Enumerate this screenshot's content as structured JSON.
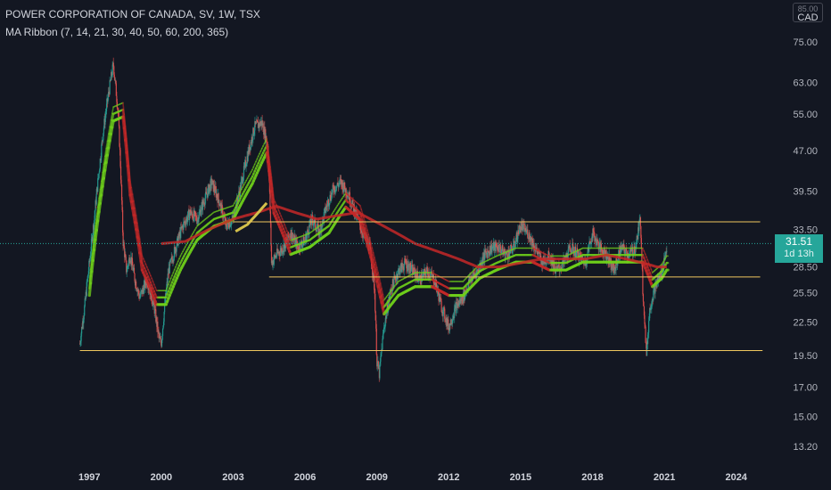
{
  "legend": {
    "symbol_line": "POWER CORPORATION OF CANADA, SV, 1W, TSX",
    "indicator_line": "MA Ribbon (7, 14, 21, 30, 40, 50, 60, 200, 365)"
  },
  "currency_badge": {
    "top": "85.00",
    "bottom": "CAD"
  },
  "last_price": {
    "value": "31.51",
    "countdown": "1d 13h"
  },
  "colors": {
    "background": "#131722",
    "candle_up": "#26a69a",
    "candle_down": "#ef5350",
    "ma_green": "#6fd11a",
    "ma_red": "#c62828",
    "ma_yellow": "#d4c04a",
    "level_line": "#f0c75e",
    "price_line": "#26a69a"
  },
  "chart_data": {
    "type": "line",
    "title": "POWER CORPORATION OF CANADA, SV, 1W, TSX",
    "xlabel": "",
    "ylabel": "",
    "y_scale": "log",
    "ylim": [
      12.5,
      87
    ],
    "xlim": [
      1995.5,
      2025.5
    ],
    "x_ticks": [
      "1997",
      "2000",
      "2003",
      "2006",
      "2009",
      "2012",
      "2015",
      "2018",
      "2021",
      "2024"
    ],
    "y_ticks": [
      "75.00",
      "63.00",
      "55.00",
      "47.00",
      "39.50",
      "33.50",
      "28.50",
      "25.50",
      "22.50",
      "19.50",
      "17.00",
      "15.00",
      "13.20"
    ],
    "last_price": 31.51,
    "series": [
      {
        "type": "price",
        "x": [
          1996.6,
          1996.8,
          1997.0,
          1997.2,
          1997.4,
          1997.6,
          1997.8,
          1998.0,
          1998.2,
          1998.4,
          1998.55,
          1998.7,
          1998.9,
          1999.1,
          1999.4,
          1999.7,
          1999.9,
          2000.0,
          2000.1,
          2000.3,
          2000.6,
          2000.9,
          2001.2,
          2001.5,
          2001.8,
          2002.1,
          2002.4,
          2002.7,
          2003.0,
          2003.3,
          2003.6,
          2003.9,
          2004.2,
          2004.45,
          2004.6,
          2004.8,
          2005.1,
          2005.4,
          2005.7,
          2006.0,
          2006.3,
          2006.6,
          2006.9,
          2007.2,
          2007.5,
          2007.8,
          2008.1,
          2008.4,
          2008.7,
          2008.9,
          2009.0,
          2009.1,
          2009.3,
          2009.6,
          2009.9,
          2010.2,
          2010.5,
          2010.8,
          2011.1,
          2011.4,
          2011.7,
          2012.0,
          2012.3,
          2012.6,
          2012.9,
          2013.2,
          2013.5,
          2013.8,
          2014.1,
          2014.4,
          2014.7,
          2015.0,
          2015.3,
          2015.6,
          2015.9,
          2016.2,
          2016.5,
          2016.8,
          2017.1,
          2017.4,
          2017.7,
          2018.0,
          2018.3,
          2018.6,
          2018.9,
          2019.2,
          2019.5,
          2019.8,
          2020.0,
          2020.1,
          2020.25,
          2020.4,
          2020.6,
          2020.9,
          2021.1
        ],
        "values": [
          20.5,
          24,
          29,
          35,
          43,
          52,
          60,
          68,
          55,
          32,
          28,
          30,
          27,
          25,
          27,
          24,
          21,
          20.5,
          23,
          28,
          31,
          34,
          36,
          35,
          38,
          41,
          38,
          34,
          35,
          40,
          46,
          52,
          53,
          48,
          29,
          30,
          31,
          33,
          31,
          32,
          35,
          33,
          37,
          40,
          41,
          39,
          36,
          33,
          31,
          26,
          19,
          18,
          22,
          26,
          28,
          29,
          28,
          27,
          28,
          27,
          24,
          22,
          24,
          25,
          27,
          28,
          30,
          31,
          31,
          30,
          31,
          34,
          33,
          31,
          29,
          30,
          28,
          29,
          31,
          30,
          29,
          33,
          31,
          30,
          28,
          31,
          30,
          31,
          35,
          26,
          19.5,
          24,
          26,
          28,
          31
        ]
      },
      {
        "name": "",
        "type": "ma_fast",
        "x": [
          1997.0,
          1997.5,
          1998.0,
          1998.4,
          1998.7,
          1999.2,
          1999.8,
          2000.2,
          2000.8,
          2001.5,
          2002.2,
          2003.0,
          2003.8,
          2004.4,
          2004.7,
          2005.4,
          2006.2,
          2007.0,
          2007.7,
          2008.3,
          2008.8,
          2009.3,
          2009.9,
          2010.6,
          2011.3,
          2012.0,
          2012.6,
          2013.3,
          2014.0,
          2014.8,
          2015.5,
          2016.2,
          2016.9,
          2017.6,
          2018.3,
          2019.0,
          2019.7,
          2020.1,
          2020.5,
          2020.9,
          2021.1
        ],
        "values": [
          26,
          40,
          55,
          56,
          40,
          29,
          25,
          25,
          29,
          33,
          35,
          36,
          42,
          48,
          37,
          31,
          32,
          34,
          38,
          36,
          30,
          24,
          26,
          27,
          27,
          26,
          26,
          28,
          29,
          30,
          30,
          29,
          29,
          30,
          30,
          30,
          30,
          30,
          27,
          28,
          29
        ]
      },
      {
        "name": "",
        "type": "ma_200",
        "x": [
          2000.0,
          2001.0,
          2002.0,
          2003.0,
          2004.0,
          2004.8,
          2005.6,
          2006.5,
          2007.3,
          2008.2,
          2009.0,
          2009.8,
          2010.6,
          2011.5,
          2012.4,
          2013.2,
          2014.1,
          2015.0,
          2015.9,
          2016.8,
          2017.7,
          2018.6,
          2019.4,
          2020.1,
          2020.7,
          2021.1
        ],
        "values": [
          31.5,
          31.8,
          33.5,
          35,
          36,
          37,
          36,
          35,
          35.5,
          36,
          34.5,
          33,
          31.5,
          30.5,
          29.5,
          28.5,
          28.5,
          29,
          29.5,
          29.5,
          29.5,
          30,
          29.5,
          29,
          28.5,
          28.5
        ]
      },
      {
        "name": "",
        "type": "ma_365",
        "x": [
          2003.1,
          2003.6,
          2004.0,
          2004.4
        ],
        "values": [
          33.2,
          34.2,
          35.8,
          37.5
        ]
      }
    ],
    "levels": [
      {
        "value": 34.6,
        "x": [
          2003.0,
          2025.0
        ]
      },
      {
        "value": 27.3,
        "x": [
          2004.5,
          2025.0
        ]
      },
      {
        "value": 19.9,
        "x": [
          1996.6,
          2025.1
        ]
      }
    ]
  }
}
